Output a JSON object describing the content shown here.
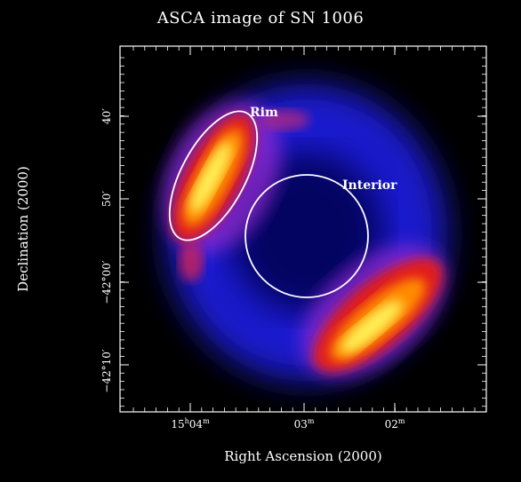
{
  "figure": {
    "title": "ASCA image of SN 1006",
    "xlabel": "Right Ascension (2000)",
    "ylabel": "Declination (2000)",
    "x_ticks": [
      {
        "h": "15",
        "hs": "h",
        "m": "04",
        "ms": "m"
      },
      {
        "h": "",
        "hs": "",
        "m": "03",
        "ms": "m"
      },
      {
        "h": "",
        "hs": "",
        "m": "02",
        "ms": "m"
      }
    ],
    "y_ticks": [
      "40′",
      "50′",
      "−42°00′",
      "−42°10′"
    ],
    "regions": {
      "rim_label": "Rim",
      "interior_label": "Interior"
    }
  },
  "colors": {
    "background": "#000000",
    "region_outline": "#ffffff"
  }
}
